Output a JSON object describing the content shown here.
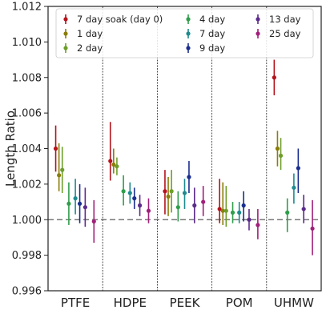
{
  "chart_data": {
    "type": "scatter",
    "subtype": "errorbar",
    "title": "",
    "xlabel": "",
    "ylabel": "Length Ratio",
    "ylim": [
      0.996,
      1.012
    ],
    "yticks": [
      0.996,
      0.998,
      1.0,
      1.002,
      1.004,
      1.006,
      1.008,
      1.01,
      1.012
    ],
    "yticks_labels": [
      "0.996",
      "0.998",
      "1.000",
      "1.002",
      "1.004",
      "1.006",
      "1.008",
      "1.010",
      "1.012"
    ],
    "reference_line": 1.0,
    "categories": [
      "PTFE",
      "HDPE",
      "PEEK",
      "POM",
      "UHMW"
    ],
    "legend_position": "top",
    "series": [
      {
        "name": "7 day soak (day 0)",
        "color": "#b5121b",
        "points": [
          {
            "category": "PTFE",
            "value": 1.004,
            "low": 1.0027,
            "high": 1.0053
          },
          {
            "category": "HDPE",
            "value": 1.0033,
            "low": 1.0022,
            "high": 1.0055
          },
          {
            "category": "PEEK",
            "value": 1.0016,
            "low": 1.0003,
            "high": 1.0028
          },
          {
            "category": "POM",
            "value": 1.0006,
            "low": 0.9998,
            "high": 1.0023
          },
          {
            "category": "UHMW",
            "value": 1.008,
            "low": 1.007,
            "high": 1.009
          }
        ]
      },
      {
        "name": "1 day",
        "color": "#8b7d0a",
        "points": [
          {
            "category": "PTFE",
            "value": 1.0025,
            "low": 1.0016,
            "high": 1.0043
          },
          {
            "category": "HDPE",
            "value": 1.0031,
            "low": 1.0026,
            "high": 1.004
          },
          {
            "category": "PEEK",
            "value": 1.0013,
            "low": 1.0002,
            "high": 1.0024
          },
          {
            "category": "POM",
            "value": 1.0005,
            "low": 0.9997,
            "high": 1.0021
          },
          {
            "category": "UHMW",
            "value": 1.004,
            "low": 1.003,
            "high": 1.005
          }
        ]
      },
      {
        "name": "2 day",
        "color": "#6e9e2a",
        "points": [
          {
            "category": "PTFE",
            "value": 1.0028,
            "low": 1.0015,
            "high": 1.0041
          },
          {
            "category": "HDPE",
            "value": 1.003,
            "low": 1.0025,
            "high": 1.0035
          },
          {
            "category": "PEEK",
            "value": 1.0016,
            "low": 1.0004,
            "high": 1.0028
          },
          {
            "category": "POM",
            "value": 1.0005,
            "low": 0.9996,
            "high": 1.0019
          },
          {
            "category": "UHMW",
            "value": 1.0036,
            "low": 1.0028,
            "high": 1.0046
          }
        ]
      },
      {
        "name": "4 day",
        "color": "#2e9e4a",
        "points": [
          {
            "category": "PTFE",
            "value": 1.0009,
            "low": 0.9997,
            "high": 1.0021
          },
          {
            "category": "HDPE",
            "value": 1.0016,
            "low": 1.0008,
            "high": 1.0025
          },
          {
            "category": "PEEK",
            "value": 1.0007,
            "low": 0.9999,
            "high": 1.0016
          },
          {
            "category": "POM",
            "value": 1.0004,
            "low": 0.9998,
            "high": 1.001
          },
          {
            "category": "UHMW",
            "value": 1.0004,
            "low": 0.9993,
            "high": 1.0012
          }
        ]
      },
      {
        "name": "7 day",
        "color": "#1d8a8e",
        "points": [
          {
            "category": "PTFE",
            "value": 1.0012,
            "low": 1.0003,
            "high": 1.0023
          },
          {
            "category": "HDPE",
            "value": 1.0015,
            "low": 1.0009,
            "high": 1.0021
          },
          {
            "category": "PEEK",
            "value": 1.0015,
            "low": 1.0006,
            "high": 1.0023
          },
          {
            "category": "POM",
            "value": 1.0004,
            "low": 0.9998,
            "high": 1.001
          },
          {
            "category": "UHMW",
            "value": 1.0018,
            "low": 1.0009,
            "high": 1.0026
          }
        ]
      },
      {
        "name": "9 day",
        "color": "#1a2e8f",
        "points": [
          {
            "category": "PTFE",
            "value": 1.0009,
            "low": 0.9998,
            "high": 1.002
          },
          {
            "category": "HDPE",
            "value": 1.0012,
            "low": 1.0006,
            "high": 1.0018
          },
          {
            "category": "PEEK",
            "value": 1.0024,
            "low": 1.0015,
            "high": 1.0033
          },
          {
            "category": "POM",
            "value": 1.0008,
            "low": 0.9999,
            "high": 1.0016
          },
          {
            "category": "UHMW",
            "value": 1.0029,
            "low": 1.0015,
            "high": 1.004
          }
        ]
      },
      {
        "name": "13 day",
        "color": "#5b2a8a",
        "points": [
          {
            "category": "PTFE",
            "value": 1.0007,
            "low": 0.9996,
            "high": 1.0018
          },
          {
            "category": "HDPE",
            "value": 1.0008,
            "low": 1.0002,
            "high": 1.0014
          },
          {
            "category": "PEEK",
            "value": 1.0008,
            "low": 0.9998,
            "high": 1.0018
          },
          {
            "category": "POM",
            "value": 1.0,
            "low": 0.9994,
            "high": 1.0006
          },
          {
            "category": "UHMW",
            "value": 1.0006,
            "low": 0.9998,
            "high": 1.0014
          }
        ]
      },
      {
        "name": "25 day",
        "color": "#a11f7a",
        "points": [
          {
            "category": "PTFE",
            "value": 0.9999,
            "low": 0.9987,
            "high": 1.0011
          },
          {
            "category": "HDPE",
            "value": 1.0005,
            "low": 0.9998,
            "high": 1.0012
          },
          {
            "category": "PEEK",
            "value": 1.001,
            "low": 1.0002,
            "high": 1.0019
          },
          {
            "category": "POM",
            "value": 0.9997,
            "low": 0.9989,
            "high": 1.0006
          },
          {
            "category": "UHMW",
            "value": 0.9995,
            "low": 0.998,
            "high": 1.0011
          }
        ]
      }
    ]
  }
}
